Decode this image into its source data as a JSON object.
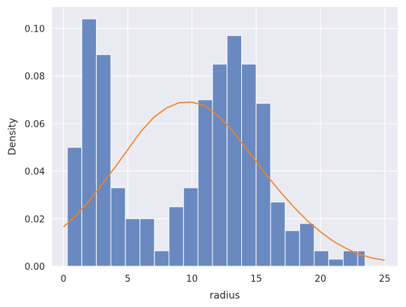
{
  "chart_data": {
    "type": "bar",
    "xlabel": "radius",
    "ylabel": "Density",
    "xlim": [
      -0.9,
      26.0
    ],
    "ylim": [
      0.0,
      0.109
    ],
    "x_ticks": [
      0,
      5,
      10,
      15,
      20,
      25
    ],
    "y_ticks": [
      0.0,
      0.02,
      0.04,
      0.06,
      0.08,
      0.1
    ],
    "x_tick_labels": [
      "0",
      "5",
      "10",
      "15",
      "20",
      "25"
    ],
    "y_tick_labels": [
      "0.00",
      "0.02",
      "0.04",
      "0.06",
      "0.08",
      "0.10"
    ],
    "grid": true,
    "colors": {
      "background": "#eaeaf2",
      "grid": "#ffffff",
      "bar_fill": "#6a89c0",
      "bar_edge": "#ffffff",
      "curve": "#f58220"
    },
    "bins": [
      {
        "x0": 0.3,
        "x1": 1.43,
        "value": 0.05
      },
      {
        "x0": 1.43,
        "x1": 2.56,
        "value": 0.104
      },
      {
        "x0": 2.56,
        "x1": 3.69,
        "value": 0.089
      },
      {
        "x0": 3.69,
        "x1": 4.82,
        "value": 0.033
      },
      {
        "x0": 4.82,
        "x1": 5.95,
        "value": 0.02
      },
      {
        "x0": 5.95,
        "x1": 7.08,
        "value": 0.02
      },
      {
        "x0": 7.08,
        "x1": 8.21,
        "value": 0.0065
      },
      {
        "x0": 8.21,
        "x1": 9.34,
        "value": 0.025
      },
      {
        "x0": 9.34,
        "x1": 10.47,
        "value": 0.033
      },
      {
        "x0": 10.47,
        "x1": 11.6,
        "value": 0.07
      },
      {
        "x0": 11.6,
        "x1": 12.73,
        "value": 0.085
      },
      {
        "x0": 12.73,
        "x1": 13.86,
        "value": 0.097
      },
      {
        "x0": 13.86,
        "x1": 14.99,
        "value": 0.085
      },
      {
        "x0": 14.99,
        "x1": 16.12,
        "value": 0.0685
      },
      {
        "x0": 16.12,
        "x1": 17.25,
        "value": 0.027
      },
      {
        "x0": 17.25,
        "x1": 18.38,
        "value": 0.015
      },
      {
        "x0": 18.38,
        "x1": 19.51,
        "value": 0.018
      },
      {
        "x0": 19.51,
        "x1": 20.64,
        "value": 0.0065
      },
      {
        "x0": 20.64,
        "x1": 21.77,
        "value": 0.003
      },
      {
        "x0": 21.77,
        "x1": 22.9,
        "value": 0.0065
      },
      {
        "x0": 22.9,
        "x1": 23.47,
        "value": 0.0065
      }
    ],
    "curve": {
      "x": [
        0,
        1,
        2,
        3,
        4,
        5,
        6,
        7,
        8,
        9,
        10,
        11,
        12,
        13,
        14,
        15,
        16,
        17,
        18,
        19,
        20,
        21,
        22,
        23,
        24,
        25
      ],
      "y": [
        0.0165,
        0.0215,
        0.0275,
        0.0345,
        0.0415,
        0.049,
        0.0565,
        0.0625,
        0.0665,
        0.0688,
        0.069,
        0.0675,
        0.0635,
        0.058,
        0.051,
        0.044,
        0.037,
        0.0305,
        0.0245,
        0.019,
        0.0145,
        0.0105,
        0.0075,
        0.005,
        0.0035,
        0.0025
      ]
    }
  }
}
